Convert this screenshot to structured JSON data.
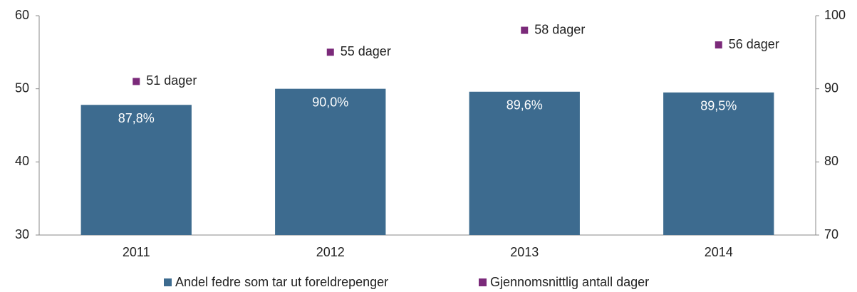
{
  "chart_data": {
    "type": "bar",
    "categories": [
      "2011",
      "2012",
      "2013",
      "2014"
    ],
    "series": [
      {
        "name": "Andel fedre som tar ut foreldrepenger",
        "type": "bar",
        "axis": "y2",
        "color": "#3d6b8f",
        "values": [
          87.8,
          90.0,
          89.6,
          89.5
        ],
        "value_labels": [
          "87,8%",
          "90,0%",
          "89,6%",
          "89,5%"
        ]
      },
      {
        "name": "Gjennomsnittlig antall dager",
        "type": "scatter",
        "axis": "y",
        "color": "#7b2a7a",
        "values": [
          51,
          55,
          58,
          56
        ],
        "value_labels": [
          "51 dager",
          "55 dager",
          "58 dager",
          "56 dager"
        ]
      }
    ],
    "ylim": [
      30,
      60
    ],
    "yticks": [
      30,
      40,
      50,
      60
    ],
    "y2lim": [
      70,
      100
    ],
    "y2ticks": [
      70,
      80,
      90,
      100
    ],
    "legend": "bottom"
  }
}
